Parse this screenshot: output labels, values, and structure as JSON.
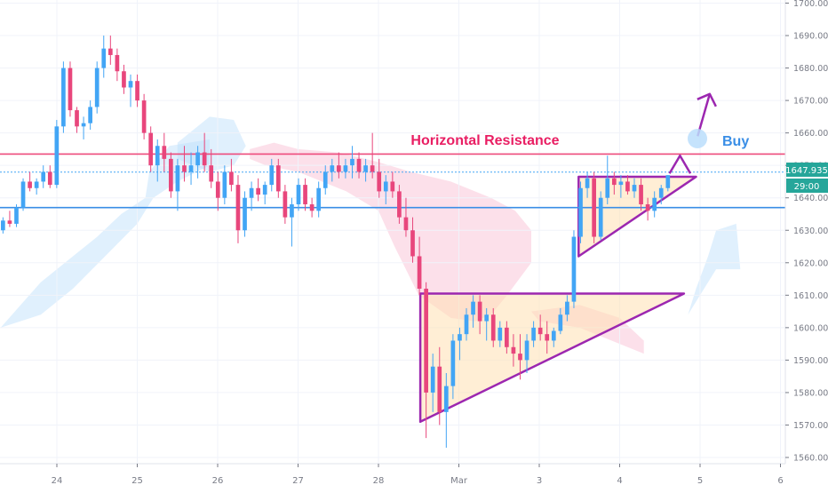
{
  "chart_data": {
    "type": "candlestick",
    "title": "",
    "xlabel": "",
    "ylabel": "",
    "ylim": [
      1558,
      1702
    ],
    "grid": true,
    "y_ticks": [
      "1560.000",
      "1570.000",
      "1580.000",
      "1590.000",
      "1600.000",
      "1610.000",
      "1620.000",
      "1630.000",
      "1640.000",
      "1650.000",
      "1660.000",
      "1670.000",
      "1680.000",
      "1690.000",
      "1700.000"
    ],
    "y_tick_values": [
      1560,
      1570,
      1580,
      1590,
      1600,
      1610,
      1620,
      1630,
      1640,
      1650,
      1660,
      1670,
      1680,
      1690,
      1700
    ],
    "x_ticks": [
      {
        "label": "24",
        "t": 2.0
      },
      {
        "label": "25",
        "t": 3.0
      },
      {
        "label": "26",
        "t": 4.0
      },
      {
        "label": "27",
        "t": 5.0
      },
      {
        "label": "28",
        "t": 6.0
      },
      {
        "label": "Mar",
        "t": 7.0
      },
      {
        "label": "3",
        "t": 8.0
      },
      {
        "label": "4",
        "t": 9.0
      },
      {
        "label": "5",
        "t": 10.0
      },
      {
        "label": "6",
        "t": 11.0
      }
    ],
    "x_range": [
      1.3,
      11.05
    ],
    "price_marker": {
      "value": 1647.935,
      "label": "1647.935",
      "color": "#26a69a"
    },
    "countdown": {
      "label": "29:00",
      "color": "#26a69a"
    },
    "horizontal_lines": [
      {
        "name": "resistance",
        "value": 1653.5,
        "color": "#ee4b7c"
      },
      {
        "name": "support",
        "value": 1637.0,
        "color": "#3a8ee6"
      },
      {
        "name": "last-price",
        "value": 1647.935,
        "color": "#42a5f5",
        "dashed": true
      }
    ],
    "annotations": {
      "resistance_label": "Horizontal Resistance",
      "buy_label": "Buy",
      "resistance_color": "#e91e63",
      "buy_color": "#3a8ee6",
      "pattern_color": "#9c27b0"
    },
    "patterns": [
      {
        "name": "ascending-triangle-large",
        "points": [
          [
            6.52,
            1571
          ],
          [
            6.52,
            1610.5
          ],
          [
            9.8,
            1610.5
          ]
        ]
      },
      {
        "name": "ascending-triangle-small",
        "points": [
          [
            8.49,
            1622
          ],
          [
            8.49,
            1646.5
          ],
          [
            9.95,
            1646.5
          ]
        ]
      }
    ],
    "arrows": [
      {
        "name": "breakout-arrow-small",
        "from": [
          9.62,
          1647.5
        ],
        "to": [
          9.75,
          1653
        ],
        "head_to": [
          9.88,
          1647.5
        ]
      },
      {
        "name": "breakout-arrow-large",
        "from": [
          9.97,
          1659
        ],
        "to": [
          10.12,
          1672
        ]
      }
    ],
    "cloud": [
      {
        "kind": "bull",
        "points": [
          [
            1.3,
            1600
          ],
          [
            1.55,
            1607
          ],
          [
            1.8,
            1614
          ],
          [
            2.2,
            1622
          ],
          [
            2.5,
            1628
          ],
          [
            2.8,
            1635
          ],
          [
            3.1,
            1640
          ],
          [
            3.15,
            1648
          ],
          [
            3.4,
            1656
          ],
          [
            3.9,
            1658
          ],
          [
            3.9,
            1650
          ],
          [
            3.5,
            1645
          ],
          [
            3.2,
            1640
          ],
          [
            3.0,
            1632
          ],
          [
            2.6,
            1622
          ],
          [
            2.2,
            1612
          ],
          [
            1.8,
            1604
          ],
          [
            1.3,
            1600
          ]
        ]
      },
      {
        "kind": "bull",
        "points": [
          [
            3.5,
            1657
          ],
          [
            3.9,
            1665
          ],
          [
            4.2,
            1664
          ],
          [
            4.35,
            1656
          ],
          [
            4.2,
            1650
          ],
          [
            3.9,
            1648
          ],
          [
            3.5,
            1652
          ]
        ]
      },
      {
        "kind": "bear",
        "points": [
          [
            4.4,
            1655
          ],
          [
            4.7,
            1657
          ],
          [
            5.0,
            1655
          ],
          [
            5.5,
            1654
          ],
          [
            6.0,
            1651
          ],
          [
            6.4,
            1648
          ],
          [
            6.9,
            1645
          ],
          [
            7.4,
            1640
          ],
          [
            7.7,
            1636
          ],
          [
            7.9,
            1630
          ],
          [
            7.9,
            1620
          ],
          [
            7.6,
            1610
          ],
          [
            7.4,
            1604
          ],
          [
            7.2,
            1602
          ],
          [
            6.9,
            1603
          ],
          [
            6.5,
            1610
          ],
          [
            6.2,
            1625
          ],
          [
            6.0,
            1636
          ],
          [
            5.6,
            1642
          ],
          [
            5.3,
            1645
          ],
          [
            5.0,
            1648
          ],
          [
            4.6,
            1650
          ],
          [
            4.4,
            1652
          ]
        ]
      },
      {
        "kind": "bear",
        "points": [
          [
            7.9,
            1605
          ],
          [
            8.5,
            1607
          ],
          [
            9.0,
            1603
          ],
          [
            9.3,
            1596
          ],
          [
            9.3,
            1592
          ],
          [
            8.9,
            1596
          ],
          [
            8.5,
            1600
          ],
          [
            8.0,
            1602
          ]
        ]
      },
      {
        "kind": "bull",
        "points": [
          [
            9.85,
            1604
          ],
          [
            9.95,
            1612
          ],
          [
            10.1,
            1622
          ],
          [
            10.2,
            1630
          ],
          [
            10.45,
            1632
          ],
          [
            10.5,
            1618
          ],
          [
            10.2,
            1618
          ],
          [
            10.0,
            1610
          ]
        ]
      }
    ],
    "ohlc": [
      [
        1630,
        1634,
        1629,
        1633
      ],
      [
        1633,
        1636,
        1631,
        1632
      ],
      [
        1632,
        1638,
        1631,
        1637
      ],
      [
        1637,
        1646,
        1636,
        1645
      ],
      [
        1645,
        1648,
        1642,
        1643
      ],
      [
        1643,
        1646,
        1641,
        1645
      ],
      [
        1645,
        1650,
        1643,
        1648
      ],
      [
        1648,
        1650,
        1643,
        1644
      ],
      [
        1644,
        1664,
        1643,
        1662
      ],
      [
        1662,
        1682,
        1660,
        1680
      ],
      [
        1680,
        1682,
        1665,
        1667
      ],
      [
        1667,
        1668,
        1660,
        1662
      ],
      [
        1662,
        1665,
        1658,
        1663
      ],
      [
        1663,
        1670,
        1661,
        1668
      ],
      [
        1668,
        1682,
        1666,
        1680
      ],
      [
        1680,
        1690,
        1677,
        1686
      ],
      [
        1686,
        1690,
        1681,
        1684
      ],
      [
        1684,
        1686,
        1676,
        1679
      ],
      [
        1679,
        1681,
        1672,
        1674
      ],
      [
        1674,
        1678,
        1668,
        1676
      ],
      [
        1676,
        1678,
        1668,
        1670
      ],
      [
        1670,
        1672,
        1658,
        1660
      ],
      [
        1660,
        1662,
        1648,
        1650
      ],
      [
        1650,
        1658,
        1645,
        1656
      ],
      [
        1656,
        1660,
        1648,
        1652
      ],
      [
        1652,
        1654,
        1640,
        1642
      ],
      [
        1642,
        1652,
        1636,
        1650
      ],
      [
        1650,
        1656,
        1645,
        1648
      ],
      [
        1648,
        1654,
        1644,
        1650
      ],
      [
        1650,
        1656,
        1646,
        1654
      ],
      [
        1654,
        1660,
        1648,
        1650
      ],
      [
        1650,
        1655,
        1643,
        1645
      ],
      [
        1645,
        1648,
        1636,
        1640
      ],
      [
        1640,
        1650,
        1638,
        1648
      ],
      [
        1648,
        1652,
        1642,
        1644
      ],
      [
        1644,
        1647,
        1626,
        1630
      ],
      [
        1630,
        1642,
        1628,
        1640
      ],
      [
        1640,
        1645,
        1636,
        1643
      ],
      [
        1643,
        1646,
        1639,
        1641
      ],
      [
        1641,
        1645,
        1638,
        1644
      ],
      [
        1644,
        1652,
        1642,
        1650
      ],
      [
        1650,
        1652,
        1640,
        1642
      ],
      [
        1642,
        1644,
        1632,
        1634
      ],
      [
        1634,
        1640,
        1625,
        1638
      ],
      [
        1638,
        1646,
        1636,
        1644
      ],
      [
        1644,
        1646,
        1636,
        1638
      ],
      [
        1638,
        1640,
        1634,
        1636
      ],
      [
        1636,
        1645,
        1634,
        1643
      ],
      [
        1643,
        1650,
        1641,
        1648
      ],
      [
        1648,
        1652,
        1645,
        1650
      ],
      [
        1650,
        1654,
        1646,
        1648
      ],
      [
        1648,
        1652,
        1646,
        1650
      ],
      [
        1650,
        1656,
        1646,
        1652
      ],
      [
        1652,
        1654,
        1646,
        1648
      ],
      [
        1648,
        1652,
        1645,
        1650
      ],
      [
        1650,
        1660,
        1646,
        1648
      ],
      [
        1648,
        1652,
        1640,
        1642
      ],
      [
        1642,
        1647,
        1638,
        1645
      ],
      [
        1645,
        1648,
        1640,
        1642
      ],
      [
        1642,
        1644,
        1632,
        1634
      ],
      [
        1634,
        1640,
        1628,
        1630
      ],
      [
        1630,
        1634,
        1620,
        1622
      ],
      [
        1622,
        1628,
        1610,
        1612
      ],
      [
        1612,
        1614,
        1566,
        1580
      ],
      [
        1580,
        1592,
        1574,
        1588
      ],
      [
        1588,
        1594,
        1570,
        1574
      ],
      [
        1574,
        1586,
        1563,
        1582
      ],
      [
        1582,
        1598,
        1578,
        1596
      ],
      [
        1596,
        1600,
        1590,
        1598
      ],
      [
        1598,
        1606,
        1596,
        1604
      ],
      [
        1604,
        1610,
        1600,
        1608
      ],
      [
        1608,
        1610,
        1598,
        1602
      ],
      [
        1602,
        1606,
        1596,
        1604
      ],
      [
        1604,
        1606,
        1594,
        1596
      ],
      [
        1596,
        1602,
        1594,
        1600
      ],
      [
        1600,
        1602,
        1592,
        1594
      ],
      [
        1594,
        1598,
        1588,
        1592
      ],
      [
        1592,
        1598,
        1584,
        1590
      ],
      [
        1590,
        1598,
        1586,
        1596
      ],
      [
        1596,
        1602,
        1594,
        1600
      ],
      [
        1600,
        1604,
        1596,
        1598
      ],
      [
        1598,
        1602,
        1592,
        1596
      ],
      [
        1596,
        1600,
        1594,
        1599
      ],
      [
        1599,
        1606,
        1598,
        1604
      ],
      [
        1604,
        1610,
        1602,
        1608
      ],
      [
        1608,
        1630,
        1606,
        1628
      ],
      [
        1628,
        1645,
        1626,
        1643
      ],
      [
        1643,
        1648,
        1640,
        1646
      ],
      [
        1646,
        1648,
        1626,
        1628
      ],
      [
        1628,
        1642,
        1627,
        1640
      ],
      [
        1640,
        1653,
        1638,
        1646
      ],
      [
        1646,
        1648,
        1641,
        1644
      ],
      [
        1644,
        1647,
        1640,
        1645
      ],
      [
        1645,
        1647,
        1641,
        1642
      ],
      [
        1642,
        1646,
        1640,
        1644
      ],
      [
        1644,
        1646,
        1636,
        1638
      ],
      [
        1638,
        1640,
        1633,
        1636
      ],
      [
        1636,
        1642,
        1634,
        1640
      ],
      [
        1640,
        1644,
        1638,
        1643
      ],
      [
        1643,
        1647,
        1642,
        1647
      ]
    ]
  }
}
